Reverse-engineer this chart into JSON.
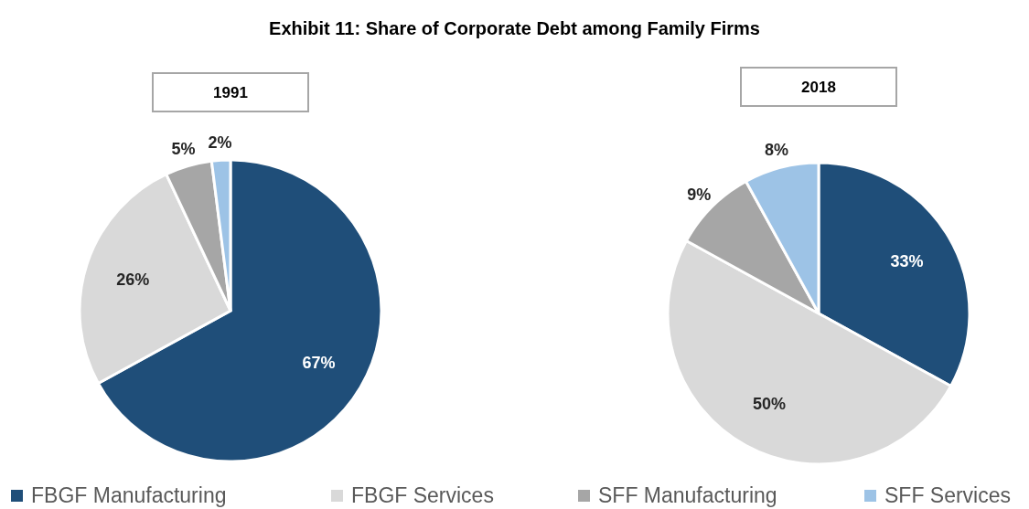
{
  "chart_data": {
    "type": "pie",
    "title": "Exhibit 11: Share of Corporate Debt among Family Firms",
    "categories": [
      "FBGF Manufacturing",
      "FBGF Services",
      "SFF Manufacturing",
      "SFF Services"
    ],
    "colors": [
      "#1f4e79",
      "#d9d9d9",
      "#a6a6a6",
      "#9dc3e6"
    ],
    "legend": "bottom",
    "series": [
      {
        "name": "1991",
        "values": [
          67,
          26,
          5,
          2
        ],
        "value_labels": [
          "67%",
          "26%",
          "5%",
          "2%"
        ]
      },
      {
        "name": "2018",
        "values": [
          33,
          50,
          9,
          8
        ],
        "value_labels": [
          "33%",
          "50%",
          "9%",
          "8%"
        ]
      }
    ]
  }
}
